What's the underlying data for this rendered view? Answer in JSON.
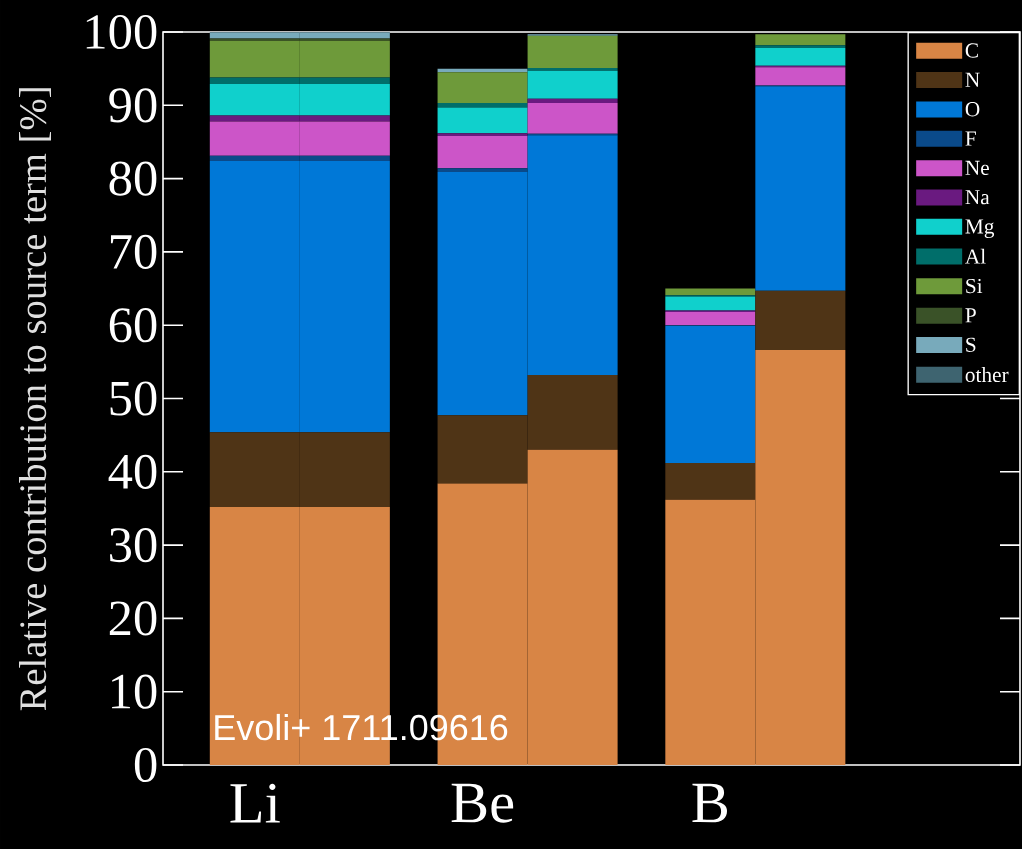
{
  "chart_data": {
    "type": "bar",
    "stacked": true,
    "categories": [
      "Li",
      null,
      "Be",
      null,
      "B",
      null
    ],
    "ylabel": "Relative contribution to source term [%]",
    "ylim": [
      0,
      100
    ],
    "yticks": [
      0,
      10,
      20,
      30,
      40,
      50,
      60,
      70,
      80,
      90,
      100
    ],
    "legend": "top right",
    "annotations": [
      "Evoli+ 1711.09616"
    ],
    "series": [
      {
        "name": "C",
        "color": "#d88545",
        "values": [
          35.2,
          35.2,
          38.4,
          43.0,
          36.2,
          56.6
        ]
      },
      {
        "name": "N",
        "color": "#4f3416",
        "values": [
          10.2,
          10.2,
          9.3,
          10.2,
          5.0,
          8.1
        ]
      },
      {
        "name": "O",
        "color": "#0078d7",
        "values": [
          37.0,
          37.0,
          33.2,
          32.7,
          18.7,
          27.9
        ]
      },
      {
        "name": "F",
        "color": "#0a4a8a",
        "values": [
          0.7,
          0.7,
          0.5,
          0.2,
          0.1,
          0.1
        ]
      },
      {
        "name": "Ne",
        "color": "#cc55c8",
        "values": [
          4.7,
          4.7,
          4.4,
          4.2,
          1.8,
          2.5
        ]
      },
      {
        "name": "Na",
        "color": "#6a1a80",
        "values": [
          0.8,
          0.8,
          0.4,
          0.6,
          0.2,
          0.2
        ]
      },
      {
        "name": "Mg",
        "color": "#10d0cc",
        "values": [
          4.3,
          4.3,
          3.5,
          3.8,
          1.9,
          2.4
        ]
      },
      {
        "name": "Al",
        "color": "#006e6a",
        "values": [
          0.9,
          0.9,
          0.6,
          0.4,
          0.2,
          0.4
        ]
      },
      {
        "name": "Si",
        "color": "#6e9a3a",
        "values": [
          5.0,
          5.0,
          4.2,
          4.4,
          0.9,
          1.5
        ]
      },
      {
        "name": "P",
        "color": "#3a5228",
        "values": [
          0.3,
          0.3,
          0.0,
          0.0,
          0.0,
          0.0
        ]
      },
      {
        "name": "S",
        "color": "#78aabb",
        "values": [
          0.8,
          0.8,
          0.5,
          0.2,
          0.0,
          0.0
        ]
      },
      {
        "name": "other",
        "color": "#3e6470",
        "values": [
          0.1,
          0.1,
          0.0,
          0.0,
          0.0,
          0.0
        ]
      }
    ]
  }
}
